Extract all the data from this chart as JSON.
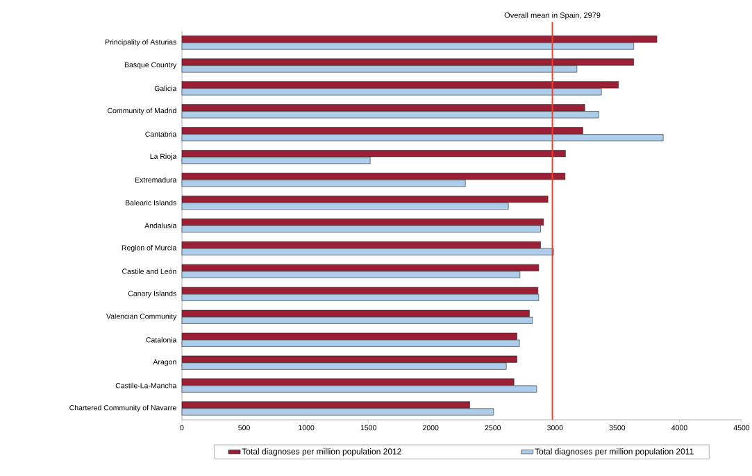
{
  "chart_data": {
    "type": "bar",
    "orientation": "horizontal",
    "categories": [
      "Principality of Asturias",
      "Basque Country",
      "Galicia",
      "Community of Madrid",
      "Cantabria",
      "La Rioja",
      "Extremadura",
      "Balearic Islands",
      "Andalusia",
      "Region of Murcia",
      "Castile and León",
      "Canary Islands",
      "Valencian Community",
      "Catalonia",
      "Aragon",
      "Castile-La-Mancha",
      "Chartered Community of Navarre"
    ],
    "series": [
      {
        "name": "Total diagnoses per million population 2012",
        "color": "#9b2035",
        "values": [
          3819,
          3633,
          3510,
          3239,
          3224,
          3084,
          3081,
          2943,
          2908,
          2884,
          2869,
          2863,
          2794,
          2694,
          2694,
          2670,
          2314
        ]
      },
      {
        "name": "Total diagnoses per million population 2011",
        "color": "#aecdea",
        "values": [
          3633,
          3176,
          3373,
          3352,
          3870,
          1514,
          2279,
          2625,
          2884,
          2988,
          2718,
          2869,
          2819,
          2714,
          2608,
          2852,
          2506
        ]
      }
    ],
    "xlim": [
      0,
      4500
    ],
    "xticks": [
      0,
      500,
      1000,
      1500,
      2000,
      2500,
      3000,
      3500,
      4000,
      4500
    ],
    "ref_lines": [
      {
        "axis": "x",
        "value": 2979,
        "label": "Overall mean in Spain, 2979",
        "color": "#e8412c"
      }
    ],
    "legend": "bottom"
  }
}
